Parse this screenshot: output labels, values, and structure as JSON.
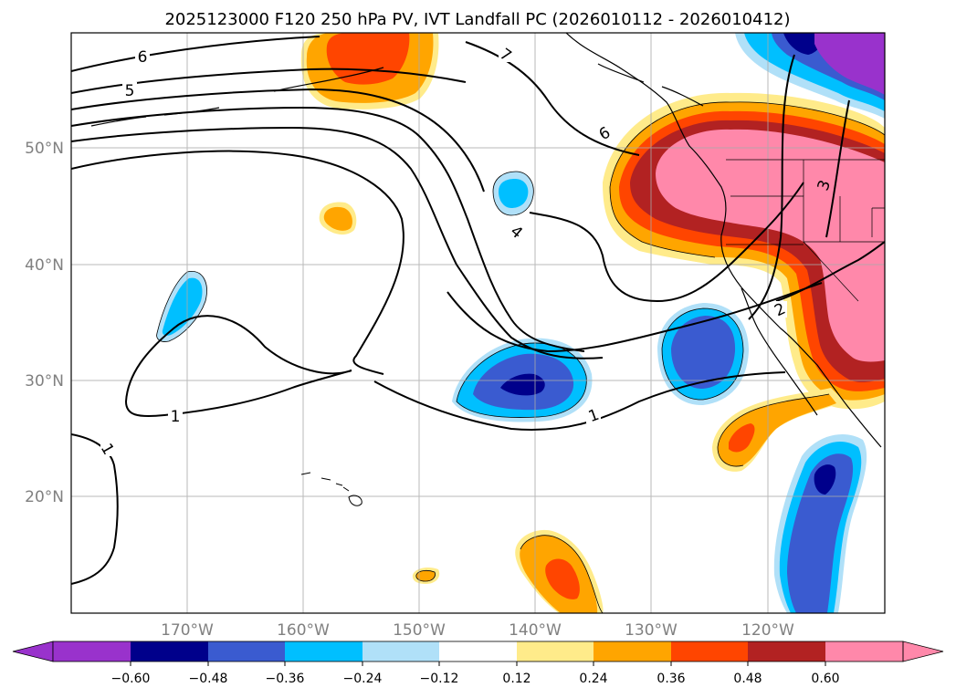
{
  "title": "2025123000 F120 250 hPa PV, IVT Landfall PC (2026010112 - 2026010412)",
  "colors": {
    "purple": "#9932cc",
    "navy": "#00008b",
    "royal": "#3a5bd0",
    "cyan": "#00bfff",
    "light_blue": "#b0e0f8",
    "white": "#ffffff",
    "light_yellow": "#ffeb8a",
    "orange": "#ffa500",
    "red_orange": "#ff4500",
    "firebrick": "#b22222",
    "pink": "#ff88aa",
    "grid": "#a9a9a9",
    "tick_text": "#808080"
  },
  "axes": {
    "lat_labels": [
      "50°N",
      "40°N",
      "30°N",
      "20°N"
    ],
    "lon_labels": [
      "170°W",
      "160°W",
      "150°W",
      "140°W",
      "130°W",
      "120°W"
    ]
  },
  "contour_labels": [
    "6",
    "5",
    "7",
    "6",
    "4",
    "3",
    "2",
    "1",
    "1",
    "1"
  ],
  "colorbar": {
    "ticks": [
      "−0.60",
      "−0.48",
      "−0.36",
      "−0.24",
      "−0.12",
      "0.12",
      "0.24",
      "0.36",
      "0.48",
      "0.60"
    ]
  }
}
